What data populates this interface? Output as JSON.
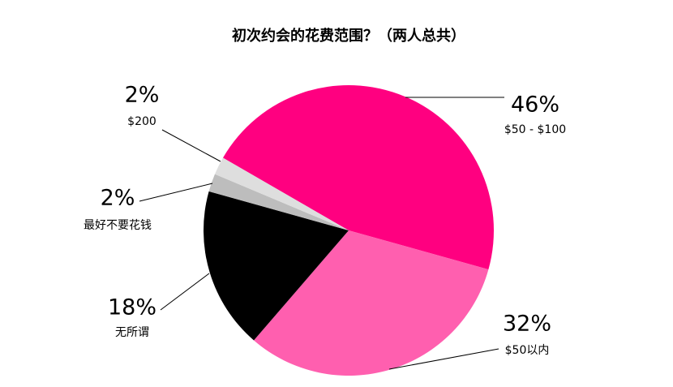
{
  "chart_data": {
    "type": "pie",
    "title": "初次约会的花费范围？（两人总共）",
    "categories": [
      "$50 - $100",
      "$50以内",
      "无所谓",
      "最好不要花钱",
      "$200"
    ],
    "values": [
      46,
      32,
      18,
      2,
      2
    ],
    "value_labels": [
      "46%",
      "32%",
      "18%",
      "2%",
      "2%"
    ],
    "colors": [
      "#ff0080",
      "#ff5faf",
      "#000000",
      "#bdbdbd",
      "#dedede"
    ]
  }
}
